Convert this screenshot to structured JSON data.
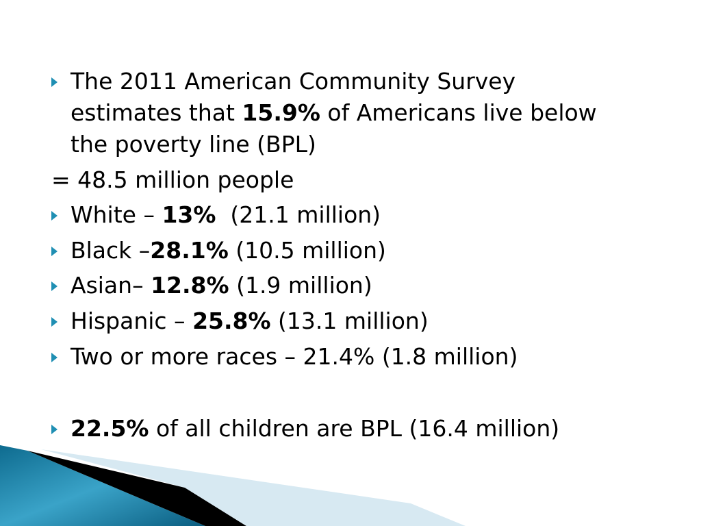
{
  "slide": {
    "bullet_icon": "triangle-right-bullet-icon",
    "accent_color": "#1f8fb3",
    "items": [
      {
        "lines": [
          "The 2011 American Community Survey",
          {
            "pre": "estimates that ",
            "bold": "15.9%",
            "post": " of Americans live below"
          },
          "the poverty line (BPL)"
        ]
      }
    ],
    "equals_line": "= 48.5 million people",
    "groups": [
      {
        "pre": "White – ",
        "bold": "13%",
        "post": "  (21.1 million)"
      },
      {
        "pre": "Black –",
        "bold": "28.1%",
        "post": " (10.5 million)"
      },
      {
        "pre": "Asian– ",
        "bold": "12.8%",
        "post": " (1.9 million)"
      },
      {
        "pre": "Hispanic – ",
        "bold": "25.8%",
        "post": " (13.1 million)"
      },
      {
        "pre": "Two or more races – 21.4% (1.8 million)",
        "bold": "",
        "post": ""
      }
    ],
    "children_line": {
      "pre": "",
      "bold": "22.5%",
      "post": " of all children are BPL (16.4 million)"
    }
  }
}
